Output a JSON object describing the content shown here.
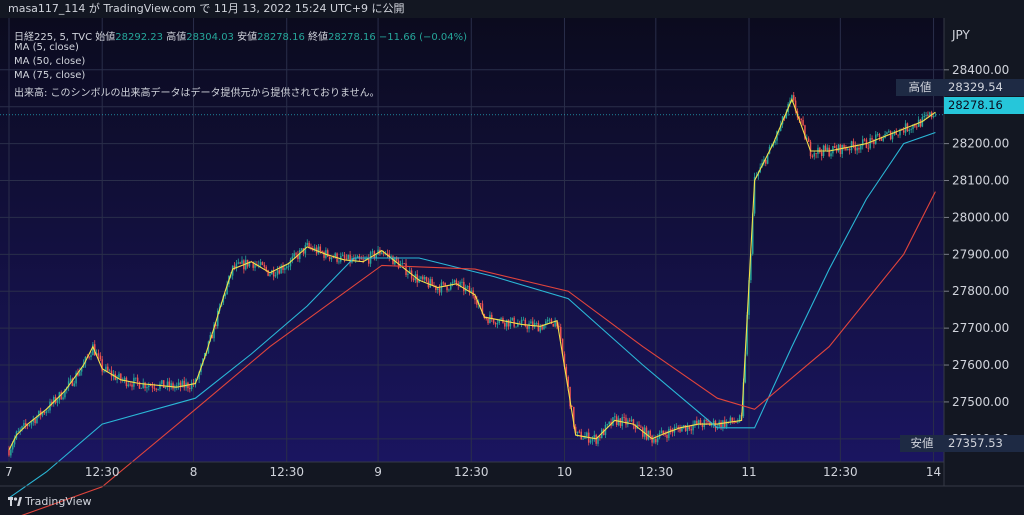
{
  "header": {
    "publisher_line": "masa117_114 が TradingView.com で 11月 13, 2022 15:24 UTC+9 に公開"
  },
  "legend": {
    "symbol": "日経225, 5, TVC",
    "open_label": "始値",
    "open_value": "28292.23",
    "high_label": "高値",
    "high_value": "28304.03",
    "low_label": "安値",
    "low_value": "28278.16",
    "close_label": "終値",
    "close_value": "28278.16",
    "change": "−11.66 (−0.04%)",
    "ma5": "MA (5, close)",
    "ma50": "MA (50, close)",
    "ma75": "MA (75, close)",
    "volume_note": "出来高: このシンボルの出来高データはデータ提供元から提供されておりません。"
  },
  "price_axis": {
    "currency": "JPY",
    "high_label": "高値",
    "high_value": "28329.54",
    "current_value": "28278.16",
    "low_label": "安値",
    "low_value": "27357.53"
  },
  "footer": {
    "brand": "TradingView"
  },
  "colors": {
    "background": "#131722",
    "plot_bg_top": "#0b0b1e",
    "plot_bg_bottom": "#1a1560",
    "up": "#26a69a",
    "down": "#ef5350",
    "ma5": "#f5e14a",
    "ma50": "#2ab7d6",
    "ma75": "#e0443c",
    "current_badge": "#26c6da"
  },
  "chart_data": {
    "type": "candlestick",
    "title": "日経225, 5, TVC",
    "ylabel": "JPY",
    "ylim": [
      27330,
      28520
    ],
    "yticks": [
      27400,
      27500,
      27600,
      27700,
      27800,
      27900,
      28000,
      28100,
      28200,
      28300,
      28400
    ],
    "x_tick_labels": [
      "7",
      "12:30",
      "8",
      "12:30",
      "9",
      "12:30",
      "10",
      "12:30",
      "11",
      "12:30",
      "14"
    ],
    "grid": true,
    "ma_series": [
      {
        "name": "MA (5, close)",
        "points": [
          [
            0,
            27370
          ],
          [
            4,
            27410
          ],
          [
            10,
            27440
          ],
          [
            20,
            27480
          ],
          [
            30,
            27530
          ],
          [
            40,
            27600
          ],
          [
            45,
            27650
          ],
          [
            50,
            27590
          ],
          [
            60,
            27560
          ],
          [
            70,
            27550
          ],
          [
            80,
            27545
          ],
          [
            90,
            27540
          ],
          [
            100,
            27550
          ],
          [
            105,
            27620
          ],
          [
            110,
            27700
          ],
          [
            116,
            27800
          ],
          [
            120,
            27860
          ],
          [
            130,
            27880
          ],
          [
            140,
            27850
          ],
          [
            150,
            27875
          ],
          [
            160,
            27920
          ],
          [
            170,
            27900
          ],
          [
            180,
            27885
          ],
          [
            190,
            27880
          ],
          [
            200,
            27910
          ],
          [
            210,
            27870
          ],
          [
            220,
            27830
          ],
          [
            230,
            27810
          ],
          [
            240,
            27820
          ],
          [
            250,
            27790
          ],
          [
            255,
            27730
          ],
          [
            265,
            27720
          ],
          [
            275,
            27710
          ],
          [
            285,
            27705
          ],
          [
            294,
            27720
          ],
          [
            304,
            27410
          ],
          [
            315,
            27400
          ],
          [
            325,
            27450
          ],
          [
            335,
            27440
          ],
          [
            345,
            27400
          ],
          [
            352,
            27415
          ],
          [
            360,
            27430
          ],
          [
            370,
            27440
          ],
          [
            380,
            27440
          ],
          [
            393,
            27450
          ],
          [
            400,
            28100
          ],
          [
            410,
            28200
          ],
          [
            420,
            28320
          ],
          [
            430,
            28180
          ],
          [
            440,
            28180
          ],
          [
            450,
            28190
          ],
          [
            460,
            28200
          ],
          [
            470,
            28220
          ],
          [
            480,
            28240
          ],
          [
            490,
            28260
          ],
          [
            497,
            28285
          ]
        ]
      },
      {
        "name": "MA (50, close)",
        "points": [
          [
            0,
            27240
          ],
          [
            20,
            27310
          ],
          [
            50,
            27440
          ],
          [
            100,
            27510
          ],
          [
            130,
            27630
          ],
          [
            160,
            27760
          ],
          [
            185,
            27890
          ],
          [
            220,
            27890
          ],
          [
            260,
            27840
          ],
          [
            300,
            27780
          ],
          [
            340,
            27600
          ],
          [
            380,
            27430
          ],
          [
            400,
            27430
          ],
          [
            420,
            27650
          ],
          [
            440,
            27860
          ],
          [
            460,
            28050
          ],
          [
            480,
            28200
          ],
          [
            497,
            28230
          ]
        ]
      },
      {
        "name": "MA (75, close)",
        "points": [
          [
            0,
            27180
          ],
          [
            50,
            27270
          ],
          [
            100,
            27480
          ],
          [
            140,
            27650
          ],
          [
            200,
            27870
          ],
          [
            250,
            27860
          ],
          [
            300,
            27800
          ],
          [
            340,
            27650
          ],
          [
            380,
            27510
          ],
          [
            400,
            27480
          ],
          [
            440,
            27650
          ],
          [
            480,
            27900
          ],
          [
            497,
            28070
          ]
        ]
      }
    ]
  }
}
